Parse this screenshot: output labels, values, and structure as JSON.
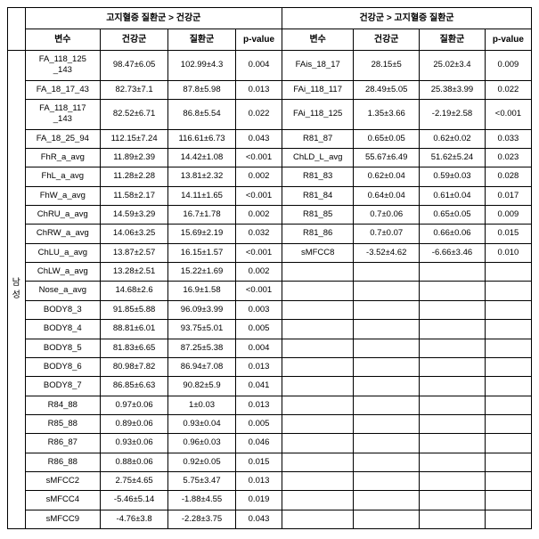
{
  "headers": {
    "group_left": "고지혈증 질환군 > 건강군",
    "group_right": "건강군 > 고지혈증 질환군",
    "var": "변수",
    "healthy": "건강군",
    "disease": "질환군",
    "pvalue": "p-value",
    "row_label": "남성"
  },
  "rows": [
    {
      "v1": "FA_118_125_143",
      "h1": "98.47±6.05",
      "d1": "102.99±4.3",
      "p1": "0.004",
      "v2": "FAis_18_17",
      "h2": "28.15±5",
      "d2": "25.02±3.4",
      "p2": "0.009"
    },
    {
      "v1": "FA_18_17_43",
      "h1": "82.73±7.1",
      "d1": "87.8±5.98",
      "p1": "0.013",
      "v2": "FAi_118_117",
      "h2": "28.49±5.05",
      "d2": "25.38±3.99",
      "p2": "0.022"
    },
    {
      "v1": "FA_118_117_143",
      "h1": "82.52±6.71",
      "d1": "86.8±5.54",
      "p1": "0.022",
      "v2": "FAi_118_125",
      "h2": "1.35±3.66",
      "d2": "-2.19±2.58",
      "p2": "<0.001"
    },
    {
      "v1": "FA_18_25_94",
      "h1": "112.15±7.24",
      "d1": "116.61±6.73",
      "p1": "0.043",
      "v2": "R81_87",
      "h2": "0.65±0.05",
      "d2": "0.62±0.02",
      "p2": "0.033"
    },
    {
      "v1": "FhR_a_avg",
      "h1": "11.89±2.39",
      "d1": "14.42±1.08",
      "p1": "<0.001",
      "v2": "ChLD_L_avg",
      "h2": "55.67±6.49",
      "d2": "51.62±5.24",
      "p2": "0.023"
    },
    {
      "v1": "FhL_a_avg",
      "h1": "11.28±2.28",
      "d1": "13.81±2.32",
      "p1": "0.002",
      "v2": "R81_83",
      "h2": "0.62±0.04",
      "d2": "0.59±0.03",
      "p2": "0.028"
    },
    {
      "v1": "FhW_a_avg",
      "h1": "11.58±2.17",
      "d1": "14.11±1.65",
      "p1": "<0.001",
      "v2": "R81_84",
      "h2": "0.64±0.04",
      "d2": "0.61±0.04",
      "p2": "0.017"
    },
    {
      "v1": "ChRU_a_avg",
      "h1": "14.59±3.29",
      "d1": "16.7±1.78",
      "p1": "0.002",
      "v2": "R81_85",
      "h2": "0.7±0.06",
      "d2": "0.65±0.05",
      "p2": "0.009"
    },
    {
      "v1": "ChRW_a_avg",
      "h1": "14.06±3.25",
      "d1": "15.69±2.19",
      "p1": "0.032",
      "v2": "R81_86",
      "h2": "0.7±0.07",
      "d2": "0.66±0.06",
      "p2": "0.015"
    },
    {
      "v1": "ChLU_a_avg",
      "h1": "13.87±2.57",
      "d1": "16.15±1.57",
      "p1": "<0.001",
      "v2": "sMFCC8",
      "h2": "-3.52±4.62",
      "d2": "-6.66±3.46",
      "p2": "0.010"
    },
    {
      "v1": "ChLW_a_avg",
      "h1": "13.28±2.51",
      "d1": "15.22±1.69",
      "p1": "0.002",
      "v2": "",
      "h2": "",
      "d2": "",
      "p2": ""
    },
    {
      "v1": "Nose_a_avg",
      "h1": "14.68±2.6",
      "d1": "16.9±1.58",
      "p1": "<0.001",
      "v2": "",
      "h2": "",
      "d2": "",
      "p2": ""
    },
    {
      "v1": "BODY8_3",
      "h1": "91.85±5.88",
      "d1": "96.09±3.99",
      "p1": "0.003",
      "v2": "",
      "h2": "",
      "d2": "",
      "p2": ""
    },
    {
      "v1": "BODY8_4",
      "h1": "88.81±6.01",
      "d1": "93.75±5.01",
      "p1": "0.005",
      "v2": "",
      "h2": "",
      "d2": "",
      "p2": ""
    },
    {
      "v1": "BODY8_5",
      "h1": "81.83±6.65",
      "d1": "87.25±5.38",
      "p1": "0.004",
      "v2": "",
      "h2": "",
      "d2": "",
      "p2": ""
    },
    {
      "v1": "BODY8_6",
      "h1": "80.98±7.82",
      "d1": "86.94±7.08",
      "p1": "0.013",
      "v2": "",
      "h2": "",
      "d2": "",
      "p2": ""
    },
    {
      "v1": "BODY8_7",
      "h1": "86.85±6.63",
      "d1": "90.82±5.9",
      "p1": "0.041",
      "v2": "",
      "h2": "",
      "d2": "",
      "p2": ""
    },
    {
      "v1": "R84_88",
      "h1": "0.97±0.06",
      "d1": "1±0.03",
      "p1": "0.013",
      "v2": "",
      "h2": "",
      "d2": "",
      "p2": ""
    },
    {
      "v1": "R85_88",
      "h1": "0.89±0.06",
      "d1": "0.93±0.04",
      "p1": "0.005",
      "v2": "",
      "h2": "",
      "d2": "",
      "p2": ""
    },
    {
      "v1": "R86_87",
      "h1": "0.93±0.06",
      "d1": "0.96±0.03",
      "p1": "0.046",
      "v2": "",
      "h2": "",
      "d2": "",
      "p2": ""
    },
    {
      "v1": "R86_88",
      "h1": "0.88±0.06",
      "d1": "0.92±0.05",
      "p1": "0.015",
      "v2": "",
      "h2": "",
      "d2": "",
      "p2": ""
    },
    {
      "v1": "sMFCC2",
      "h1": "2.75±4.65",
      "d1": "5.75±3.47",
      "p1": "0.013",
      "v2": "",
      "h2": "",
      "d2": "",
      "p2": ""
    },
    {
      "v1": "sMFCC4",
      "h1": "-5.46±5.14",
      "d1": "-1.88±4.55",
      "p1": "0.019",
      "v2": "",
      "h2": "",
      "d2": "",
      "p2": ""
    },
    {
      "v1": "sMFCC9",
      "h1": "-4.76±3.8",
      "d1": "-2.28±3.75",
      "p1": "0.043",
      "v2": "",
      "h2": "",
      "d2": "",
      "p2": ""
    }
  ]
}
